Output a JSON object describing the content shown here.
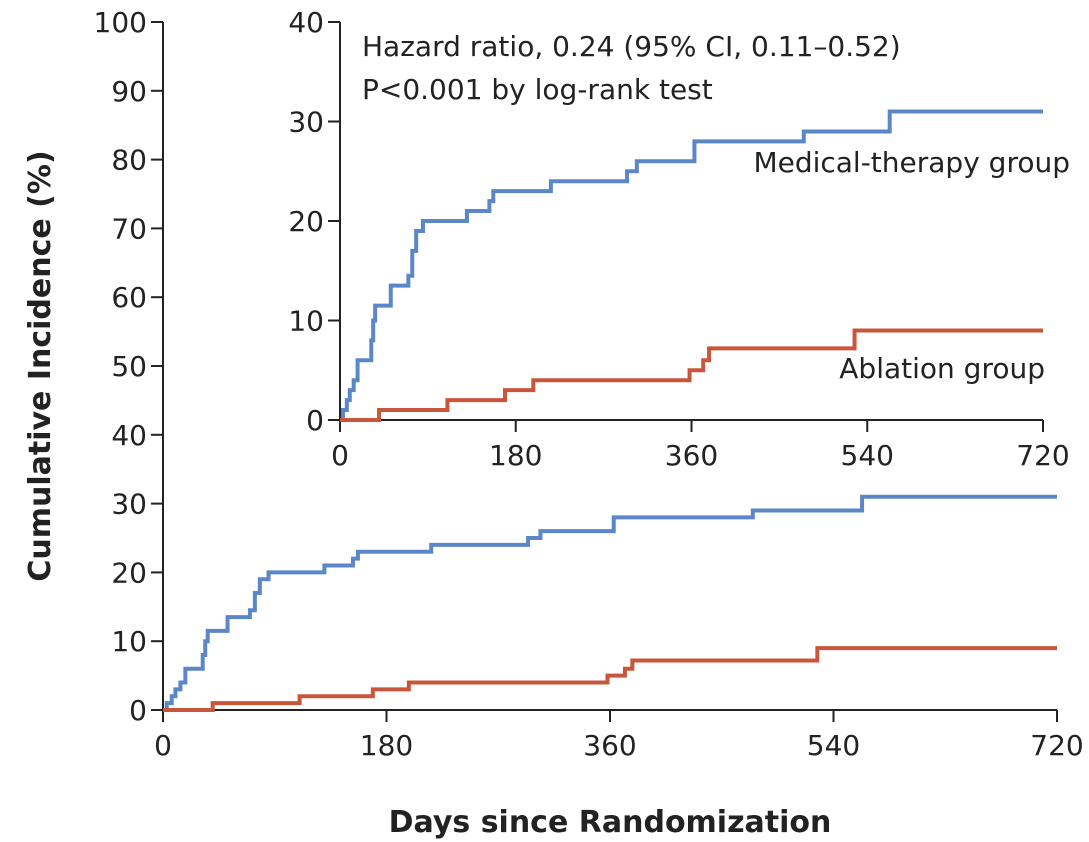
{
  "chart_data": [
    {
      "type": "line",
      "step": true,
      "ylabel": "Cumulative Incidence (%)",
      "xlabel": "Days since Randomization",
      "xlim": [
        0,
        720
      ],
      "xticks": [
        0,
        180,
        360,
        540,
        720
      ],
      "ylim": [
        0,
        100
      ],
      "yticks": [
        0,
        10,
        20,
        30,
        40,
        50,
        60,
        70,
        80,
        90,
        100
      ],
      "series": [
        {
          "color": "#5b87c9",
          "x": [
            0,
            3,
            7,
            10,
            14,
            18,
            32,
            34,
            36,
            52,
            70,
            74,
            78,
            85,
            130,
            153,
            157,
            216,
            294,
            304,
            363,
            475,
            563,
            720
          ],
          "values": [
            0,
            1,
            2,
            3,
            4,
            6,
            8,
            10,
            11.5,
            13.5,
            14.5,
            17,
            19,
            20,
            21,
            22,
            23,
            24,
            25,
            26,
            28,
            29,
            31,
            31
          ]
        },
        {
          "color": "#c9553a",
          "x": [
            0,
            40,
            110,
            169,
            198,
            358,
            372,
            378,
            527,
            720
          ],
          "values": [
            0,
            1,
            2,
            3,
            4,
            5,
            6,
            7.2,
            9,
            9
          ]
        }
      ]
    },
    {
      "type": "line",
      "step": true,
      "annotations": [
        "Hazard ratio, 0.24 (95% CI, 0.11–0.52)",
        "P<0.001 by log-rank test"
      ],
      "xlim": [
        0,
        720
      ],
      "xticks": [
        0,
        180,
        360,
        540,
        720
      ],
      "ylim": [
        0,
        40
      ],
      "yticks": [
        0,
        10,
        20,
        30,
        40
      ],
      "series": [
        {
          "name": "Medical-therapy group",
          "color": "#5b87c9",
          "x": [
            0,
            3,
            7,
            10,
            14,
            18,
            32,
            34,
            36,
            52,
            70,
            74,
            78,
            85,
            130,
            153,
            157,
            216,
            294,
            304,
            363,
            475,
            563,
            720
          ],
          "values": [
            0,
            1,
            2,
            3,
            4,
            6,
            8,
            10,
            11.5,
            13.5,
            14.5,
            17,
            19,
            20,
            21,
            22,
            23,
            24,
            25,
            26,
            28,
            29,
            31,
            31
          ]
        },
        {
          "name": "Ablation group",
          "color": "#c9553a",
          "x": [
            0,
            40,
            110,
            169,
            198,
            358,
            372,
            378,
            527,
            720
          ],
          "values": [
            0,
            1,
            2,
            3,
            4,
            5,
            6,
            7.2,
            9,
            9
          ]
        }
      ]
    }
  ]
}
